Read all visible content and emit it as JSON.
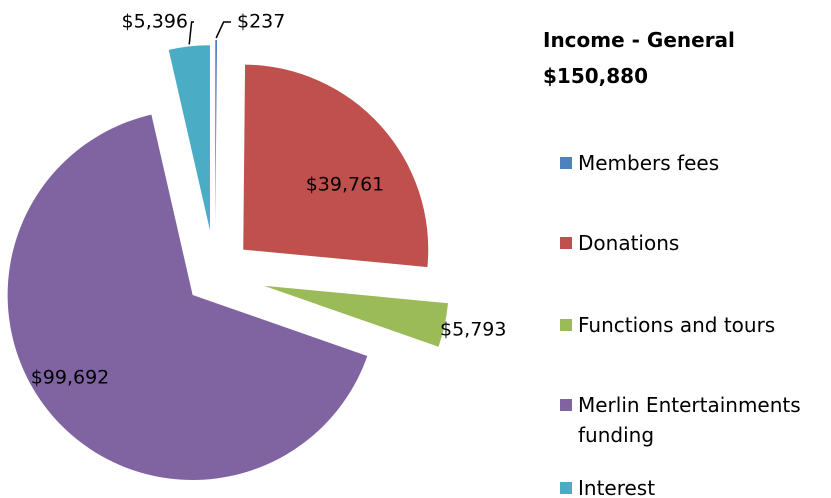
{
  "chart_data": {
    "type": "pie",
    "title": "Income - General",
    "subtitle": "$150,880",
    "categories": [
      "Members fees",
      "Donations",
      "Functions and tours",
      "Merlin Entertainments funding",
      "Interest"
    ],
    "values": [
      237,
      39761,
      5793,
      99692,
      5396
    ],
    "value_labels": [
      "$237",
      "$39,761",
      "$5,793",
      "$99,692",
      "$5,396"
    ],
    "colors": [
      "#4f81bd",
      "#c0504d",
      "#9bbb59",
      "#8064a2",
      "#4bacc6"
    ],
    "legend": "right"
  }
}
